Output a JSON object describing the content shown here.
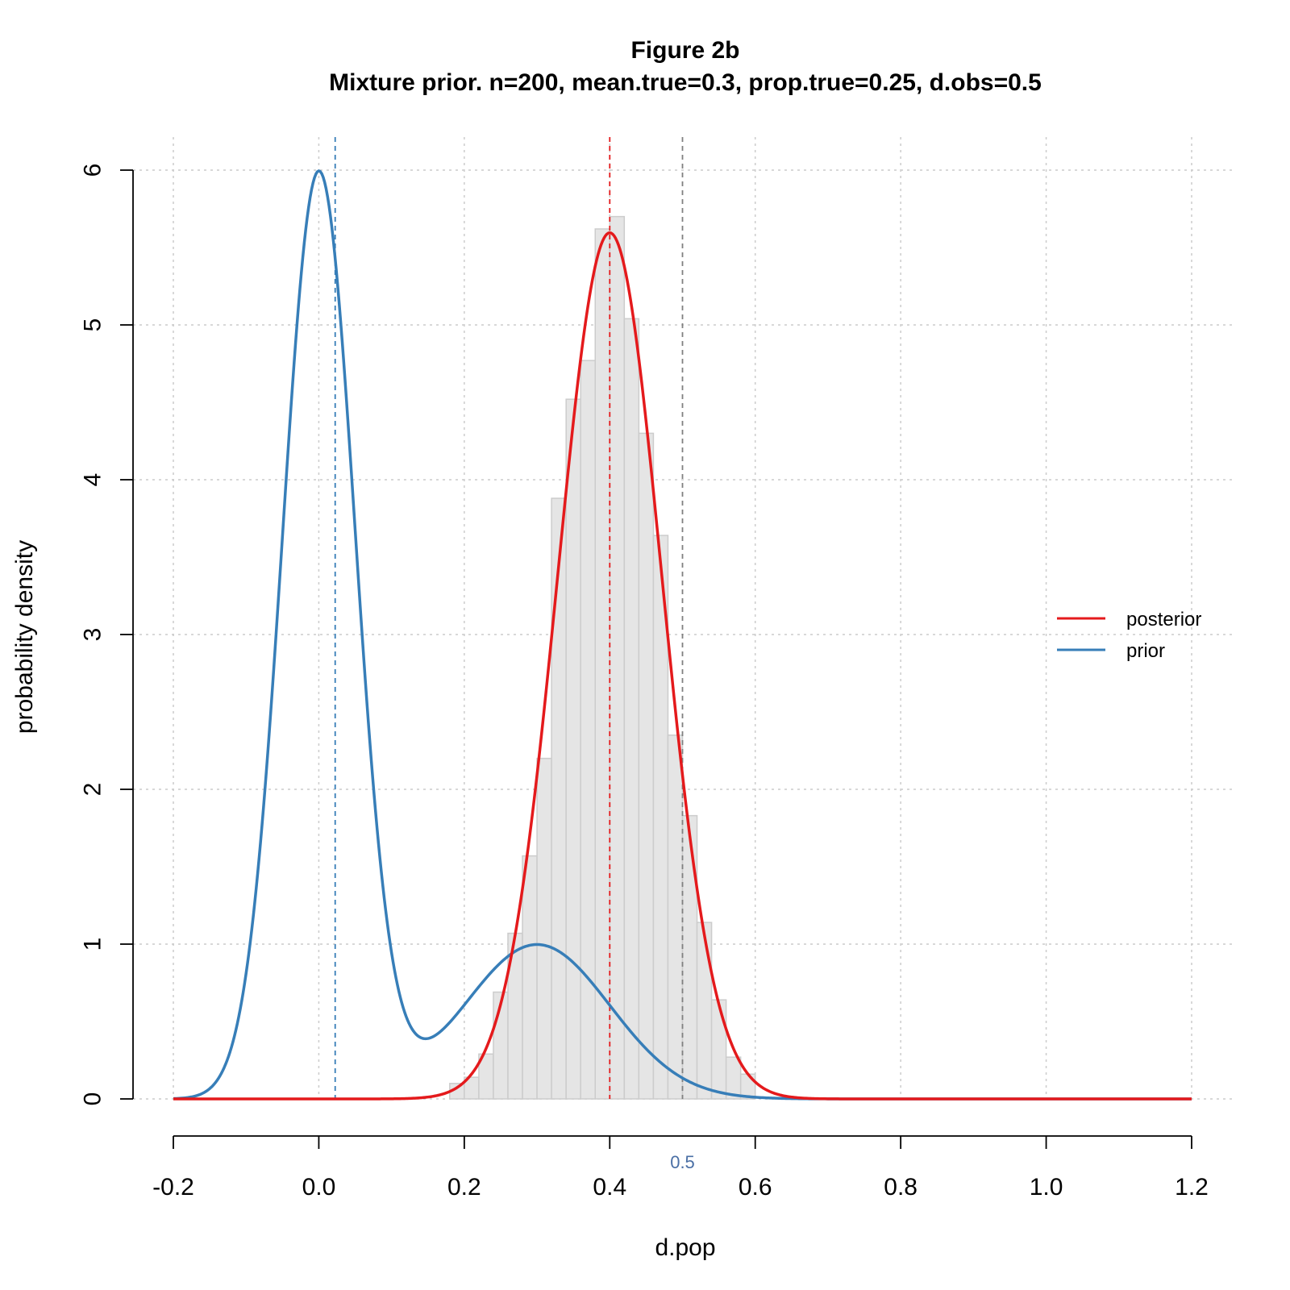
{
  "chart_data": {
    "type": "histogram_with_density",
    "title": "Figure 2b",
    "subtitle": "Mixture prior. n=200, mean.true=0.3, prop.true=0.25, d.obs=0.5",
    "xlabel": "d.pop",
    "ylabel": "probability density",
    "xlim": [
      -0.2,
      1.2
    ],
    "ylim": [
      0,
      6
    ],
    "x_ticks": [
      "-0.2",
      "0.0",
      "0.2",
      "0.4",
      "0.6",
      "0.8",
      "1.0",
      "1.2"
    ],
    "y_ticks": [
      "0",
      "1",
      "2",
      "3",
      "4",
      "5",
      "6"
    ],
    "grid": true,
    "histogram": {
      "bin_width": 0.02,
      "bin_starts": [
        0.18,
        0.2,
        0.22,
        0.24,
        0.26,
        0.28,
        0.3,
        0.32,
        0.34,
        0.36,
        0.38,
        0.4,
        0.42,
        0.44,
        0.46,
        0.48,
        0.5,
        0.52,
        0.54,
        0.56,
        0.58
      ],
      "densities": [
        0.1,
        0.14,
        0.29,
        0.69,
        1.07,
        1.57,
        2.2,
        3.88,
        4.52,
        4.77,
        5.62,
        5.7,
        5.04,
        4.3,
        3.64,
        2.35,
        1.83,
        1.14,
        0.64,
        0.27,
        0.16
      ],
      "color": "#e5e5e5"
    },
    "series": [
      {
        "name": "posterior",
        "color": "#e41a1c",
        "distribution": "normal",
        "mean": 0.4,
        "sd": 0.0713,
        "peak_density": 5.6
      },
      {
        "name": "prior",
        "color": "#377eb8",
        "distribution": "normal mixture",
        "components": [
          {
            "weight": 0.75,
            "mean": 0.0,
            "sd": 0.05
          },
          {
            "weight": 0.25,
            "mean": 0.3,
            "sd": 0.1
          }
        ],
        "peak_density": 6.0
      }
    ],
    "vlines": [
      {
        "x": 0.0225,
        "color": "#377eb8"
      },
      {
        "x": 0.4,
        "color": "#e41a1c"
      },
      {
        "x": 0.5,
        "color": "#808080"
      }
    ],
    "annotations": [
      {
        "text": "0.5",
        "x": 0.5,
        "color": "#4a6fa5"
      }
    ],
    "legend": {
      "position": "right",
      "entries": [
        {
          "label": "posterior",
          "color": "#e41a1c"
        },
        {
          "label": "prior",
          "color": "#377eb8"
        }
      ]
    }
  }
}
